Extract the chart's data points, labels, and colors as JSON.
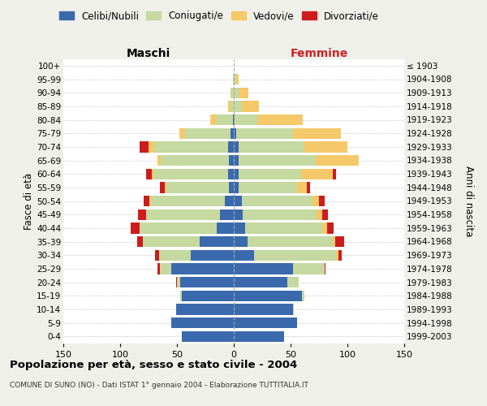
{
  "age_groups": [
    "0-4",
    "5-9",
    "10-14",
    "15-19",
    "20-24",
    "25-29",
    "30-34",
    "35-39",
    "40-44",
    "45-49",
    "50-54",
    "55-59",
    "60-64",
    "65-69",
    "70-74",
    "75-79",
    "80-84",
    "85-89",
    "90-94",
    "95-99",
    "100+"
  ],
  "birth_years": [
    "1999-2003",
    "1994-1998",
    "1989-1993",
    "1984-1988",
    "1979-1983",
    "1974-1978",
    "1969-1973",
    "1964-1968",
    "1959-1963",
    "1954-1958",
    "1949-1953",
    "1944-1948",
    "1939-1943",
    "1934-1938",
    "1929-1933",
    "1924-1928",
    "1919-1923",
    "1914-1918",
    "1909-1913",
    "1904-1908",
    "≤ 1903"
  ],
  "males": {
    "celibi": [
      46,
      55,
      51,
      46,
      47,
      55,
      38,
      30,
      15,
      12,
      8,
      4,
      5,
      4,
      5,
      3,
      1,
      0,
      0,
      0,
      0
    ],
    "coniugati": [
      0,
      0,
      0,
      1,
      3,
      10,
      28,
      50,
      68,
      65,
      65,
      55,
      65,
      60,
      65,
      40,
      15,
      3,
      2,
      1,
      0
    ],
    "vedovi": [
      0,
      0,
      0,
      0,
      0,
      0,
      0,
      0,
      0,
      0,
      1,
      2,
      2,
      3,
      5,
      5,
      5,
      2,
      1,
      0,
      0
    ],
    "divorziati": [
      0,
      0,
      0,
      0,
      1,
      2,
      3,
      5,
      8,
      7,
      5,
      4,
      5,
      0,
      8,
      0,
      0,
      0,
      0,
      0,
      0
    ]
  },
  "females": {
    "nubili": [
      44,
      56,
      52,
      60,
      47,
      52,
      18,
      12,
      10,
      8,
      7,
      4,
      4,
      4,
      4,
      2,
      1,
      0,
      0,
      0,
      0
    ],
    "coniugate": [
      0,
      0,
      1,
      2,
      10,
      28,
      72,
      75,
      68,
      65,
      62,
      52,
      55,
      68,
      58,
      50,
      20,
      7,
      5,
      2,
      0
    ],
    "vedove": [
      0,
      0,
      0,
      0,
      0,
      0,
      2,
      2,
      4,
      5,
      6,
      8,
      28,
      38,
      38,
      42,
      40,
      15,
      8,
      2,
      0
    ],
    "divorziate": [
      0,
      0,
      0,
      0,
      0,
      1,
      3,
      8,
      6,
      5,
      5,
      3,
      3,
      0,
      0,
      0,
      0,
      0,
      0,
      0,
      0
    ]
  },
  "colors": {
    "celibi_nubili": "#3a6aad",
    "coniugati": "#c5d9a0",
    "vedovi": "#f5c96a",
    "divorziati": "#cc1c1c"
  },
  "xlim": 150,
  "title": "Popolazione per età, sesso e stato civile - 2004",
  "subtitle": "COMUNE DI SUNO (NO) - Dati ISTAT 1° gennaio 2004 - Elaborazione TUTTITALIA.IT",
  "ylabel_left": "Fasce di età",
  "ylabel_right": "Anni di nascita",
  "xlabel_left": "Maschi",
  "xlabel_right": "Femmine",
  "bg_color": "#f0f0eb",
  "plot_bg_color": "#ffffff"
}
